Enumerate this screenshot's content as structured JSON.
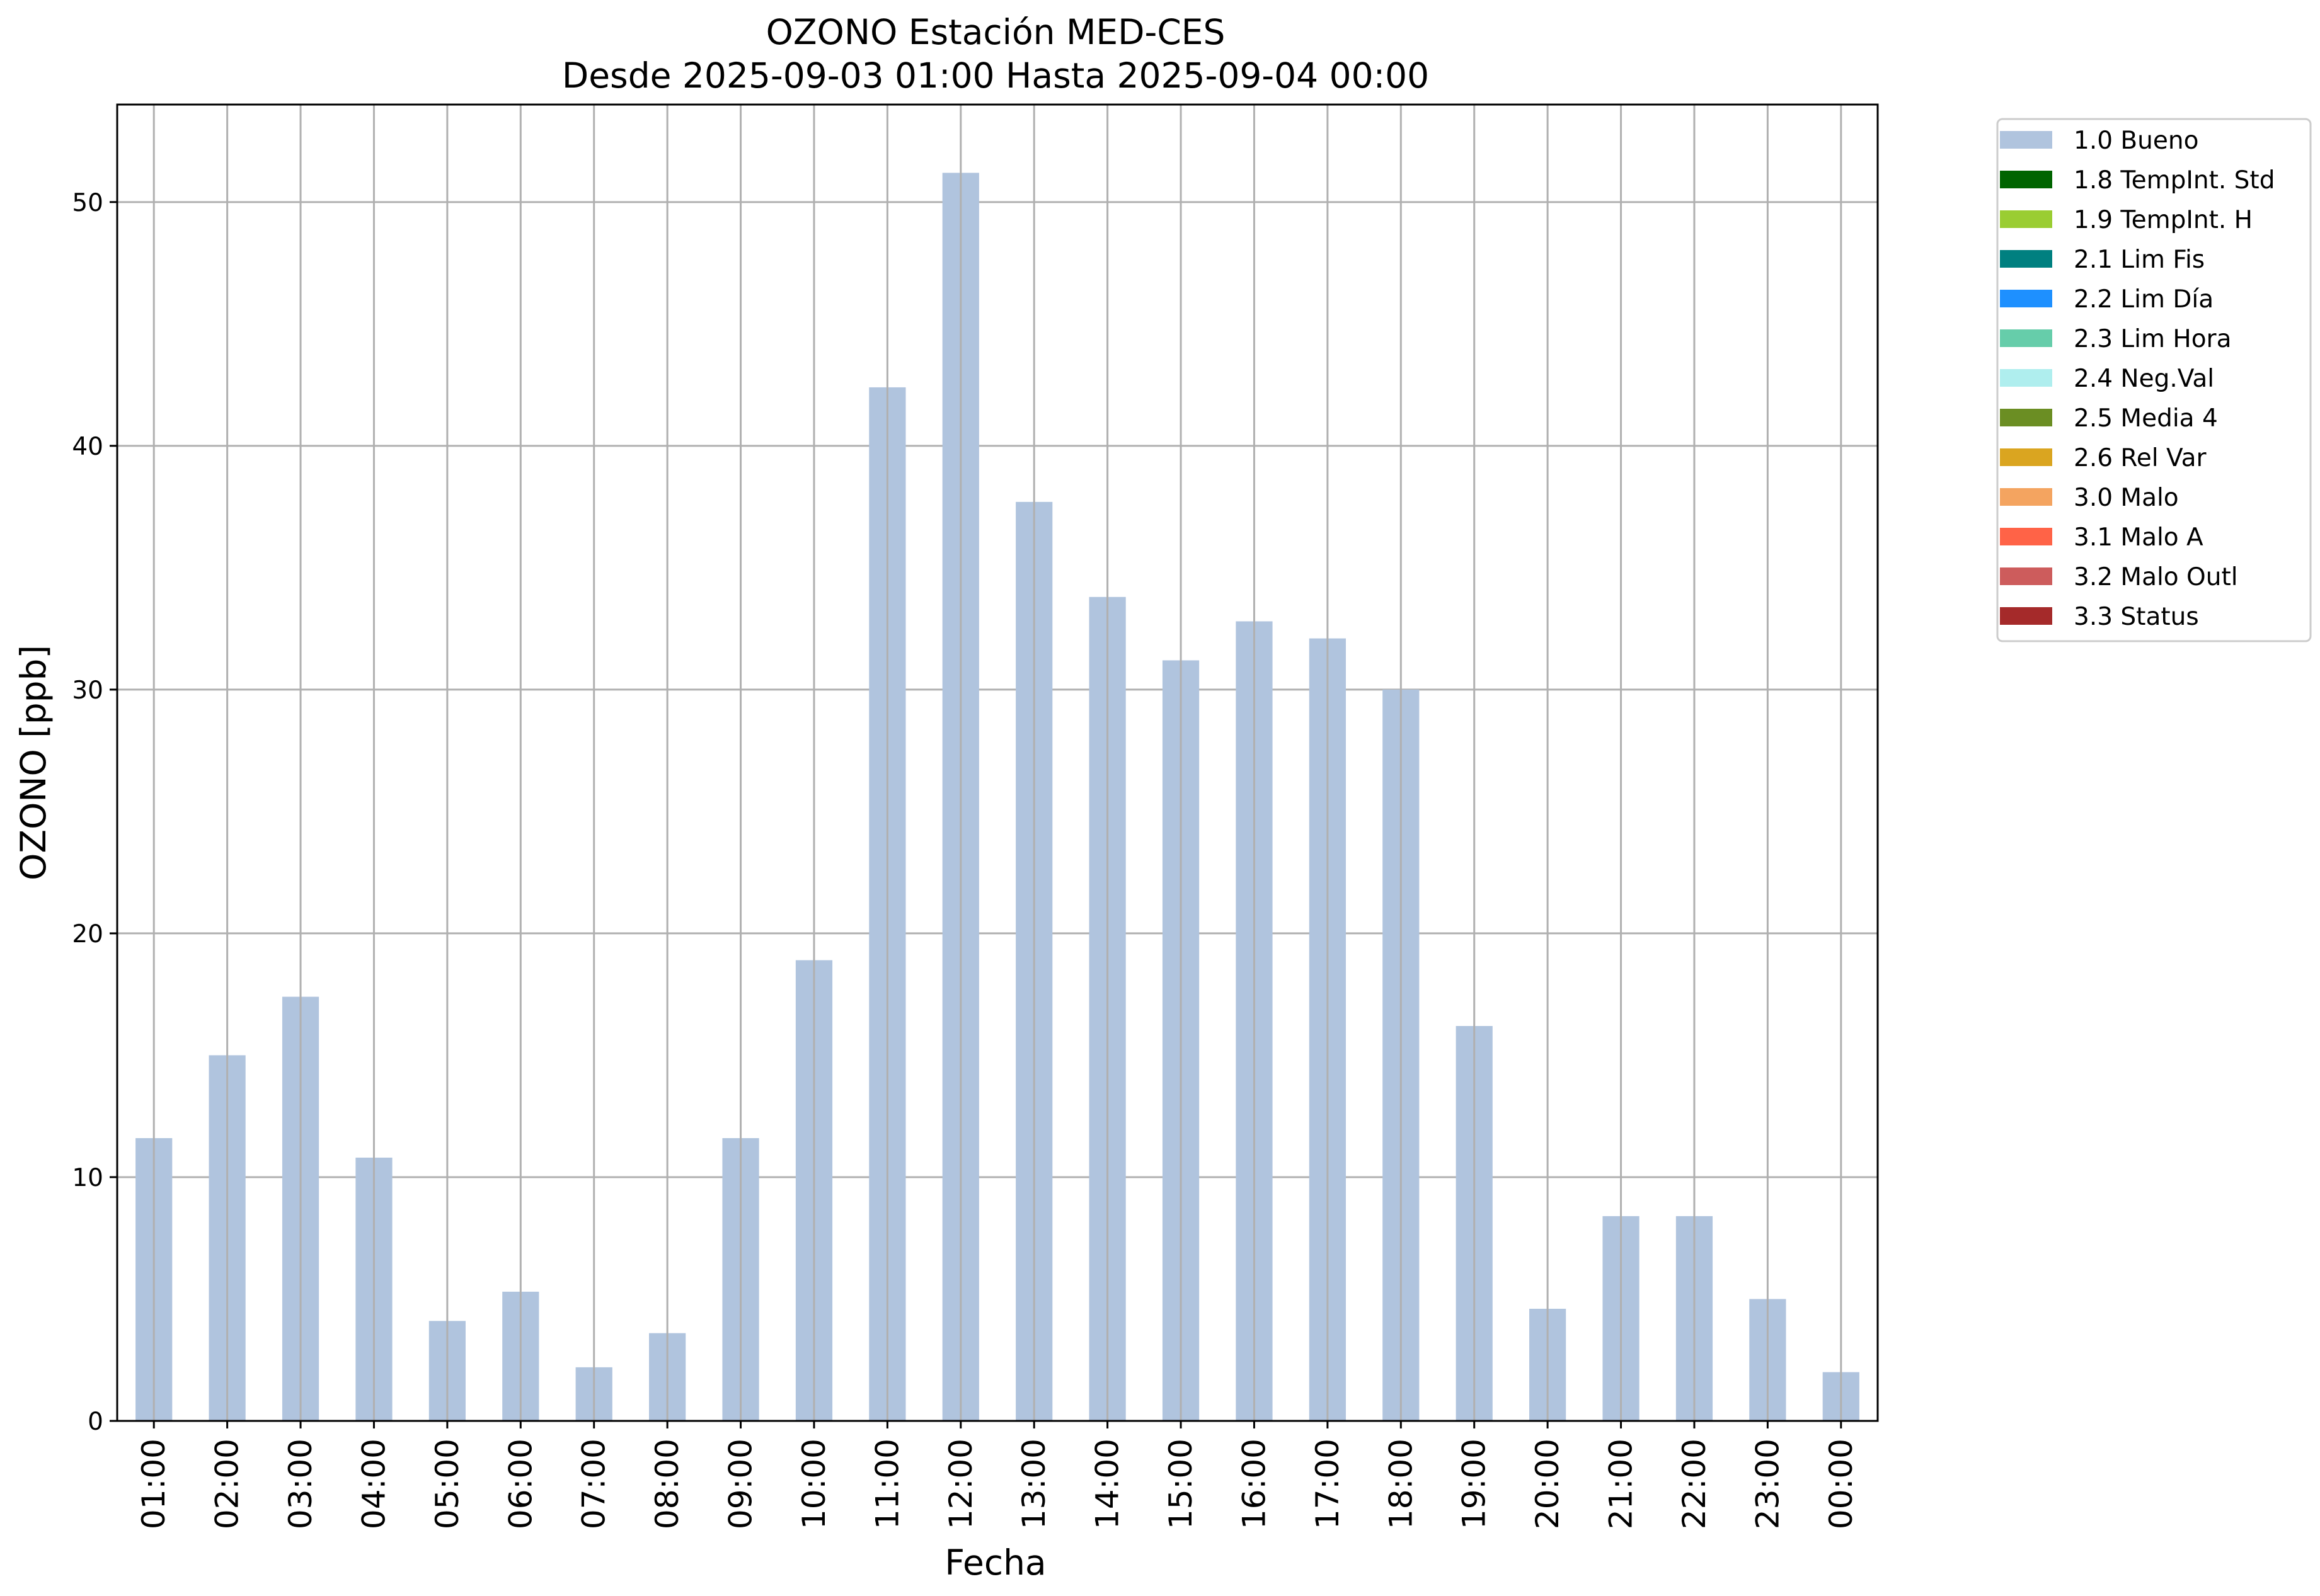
{
  "chart_data": {
    "type": "bar",
    "title": "OZONO Estación MED-CES",
    "subtitle": "Desde 2025-09-03 01:00 Hasta 2025-09-04 00:00",
    "xlabel": "Fecha",
    "ylabel": "OZONO [ppb]",
    "ylim": [
      0,
      54
    ],
    "yticks": [
      0,
      10,
      20,
      30,
      40,
      50
    ],
    "grid": true,
    "legend_position": "outside-top-right",
    "categories": [
      "01:00",
      "02:00",
      "03:00",
      "04:00",
      "05:00",
      "06:00",
      "07:00",
      "08:00",
      "09:00",
      "10:00",
      "11:00",
      "12:00",
      "13:00",
      "14:00",
      "15:00",
      "16:00",
      "17:00",
      "18:00",
      "19:00",
      "20:00",
      "21:00",
      "22:00",
      "23:00",
      "00:00"
    ],
    "series": [
      {
        "name": "1.0 Bueno",
        "color": "#b0c4de",
        "values": [
          11.6,
          15.0,
          17.4,
          10.8,
          4.1,
          5.3,
          2.2,
          3.6,
          11.6,
          18.9,
          42.4,
          51.2,
          37.7,
          33.8,
          31.2,
          32.8,
          32.1,
          30.0,
          16.2,
          4.6,
          8.4,
          8.4,
          5.0,
          2.0
        ]
      }
    ],
    "legend": [
      {
        "label": "1.0 Bueno",
        "color": "#b0c4de"
      },
      {
        "label": "1.8 TempInt. Std",
        "color": "#006400"
      },
      {
        "label": "1.9 TempInt. H",
        "color": "#9acd32"
      },
      {
        "label": "2.1 Lim Fis",
        "color": "#008080"
      },
      {
        "label": "2.2 Lim Día",
        "color": "#1e90ff"
      },
      {
        "label": "2.3 Lim Hora",
        "color": "#66cdaa"
      },
      {
        "label": "2.4 Neg.Val",
        "color": "#afeeee"
      },
      {
        "label": "2.5 Media 4",
        "color": "#6b8e23"
      },
      {
        "label": "2.6 Rel Var",
        "color": "#daa520"
      },
      {
        "label": "3.0 Malo",
        "color": "#f4a460"
      },
      {
        "label": "3.1 Malo A",
        "color": "#ff6347"
      },
      {
        "label": "3.2 Malo Outl",
        "color": "#cd5c5c"
      },
      {
        "label": "3.3 Status",
        "color": "#a52a2a"
      }
    ]
  }
}
